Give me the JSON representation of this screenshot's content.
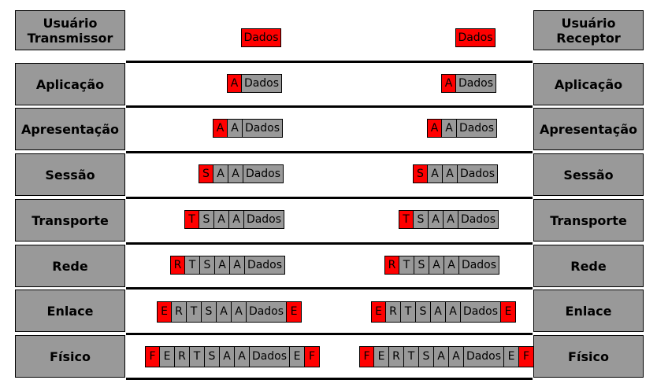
{
  "sender_label": "Usuário\nTransmissor",
  "receiver_label": "Usuário\nReceptor",
  "data_label": "Dados",
  "layers": [
    {
      "name": "Aplicação",
      "headers": [
        "A"
      ],
      "trailers": []
    },
    {
      "name": "Apresentação",
      "headers": [
        "A",
        "A"
      ],
      "trailers": []
    },
    {
      "name": "Sessão",
      "headers": [
        "S",
        "A",
        "A"
      ],
      "trailers": []
    },
    {
      "name": "Transporte",
      "headers": [
        "T",
        "S",
        "A",
        "A"
      ],
      "trailers": []
    },
    {
      "name": "Rede",
      "headers": [
        "R",
        "T",
        "S",
        "A",
        "A"
      ],
      "trailers": []
    },
    {
      "name": "Enlace",
      "headers": [
        "E",
        "R",
        "T",
        "S",
        "A",
        "A"
      ],
      "trailers": [
        "E"
      ]
    },
    {
      "name": "Físico",
      "headers": [
        "F",
        "E",
        "R",
        "T",
        "S",
        "A",
        "A"
      ],
      "trailers": [
        "E",
        "F"
      ]
    }
  ],
  "colors": {
    "new_header": "#ff0000",
    "existing": "#999999",
    "box": "#999999"
  }
}
